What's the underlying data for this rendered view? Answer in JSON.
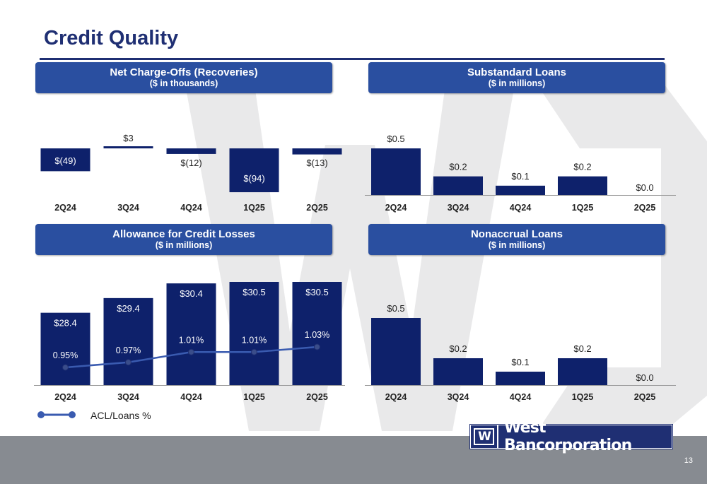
{
  "page": {
    "title": "Credit Quality",
    "page_number": "13",
    "logo_mark": "W",
    "logo_text": "West Bancorporation"
  },
  "colors": {
    "bar": "#0e216b",
    "header": "#2a4fa0",
    "line": "#3a5bb0",
    "footer": "#878b91"
  },
  "legend": {
    "label": "ACL/Loans %"
  },
  "chart_data": [
    {
      "type": "bar",
      "title": "Net Charge-Offs (Recoveries)",
      "subtitle": "($ in thousands)",
      "categories": [
        "2Q24",
        "3Q24",
        "4Q24",
        "1Q25",
        "2Q25"
      ],
      "values": [
        -49,
        3,
        -12,
        -94,
        -13
      ],
      "labels": [
        "$(49)",
        "$3",
        "$(12)",
        "$(94)",
        "$(13)"
      ],
      "ylim": [
        -100,
        10
      ]
    },
    {
      "type": "bar",
      "title": "Substandard Loans",
      "subtitle": "($ in millions)",
      "categories": [
        "2Q24",
        "3Q24",
        "4Q24",
        "1Q25",
        "2Q25"
      ],
      "values": [
        0.5,
        0.2,
        0.1,
        0.2,
        0.0
      ],
      "labels": [
        "$0.5",
        "$0.2",
        "$0.1",
        "$0.2",
        "$0.0"
      ],
      "ylim": [
        0,
        0.5
      ]
    },
    {
      "type": "bar",
      "title": "Allowance for Credit Losses",
      "subtitle": "($ in millions)",
      "categories": [
        "2Q24",
        "3Q24",
        "4Q24",
        "1Q25",
        "2Q25"
      ],
      "values": [
        28.4,
        29.4,
        30.4,
        30.5,
        30.5
      ],
      "labels": [
        "$28.4",
        "$29.4",
        "$30.4",
        "$30.5",
        "$30.5"
      ],
      "ylim": [
        0,
        30.5
      ],
      "line_series": {
        "name": "ACL/Loans %",
        "values": [
          0.95,
          0.97,
          1.01,
          1.01,
          1.03
        ],
        "labels": [
          "0.95%",
          "0.97%",
          "1.01%",
          "1.01%",
          "1.03%"
        ]
      }
    },
    {
      "type": "bar",
      "title": "Nonaccrual Loans",
      "subtitle": "($ in millions)",
      "categories": [
        "2Q24",
        "3Q24",
        "4Q24",
        "1Q25",
        "2Q25"
      ],
      "values": [
        0.5,
        0.2,
        0.1,
        0.2,
        0.0
      ],
      "labels": [
        "$0.5",
        "$0.2",
        "$0.1",
        "$0.2",
        "$0.0"
      ],
      "ylim": [
        0,
        0.5
      ]
    }
  ]
}
